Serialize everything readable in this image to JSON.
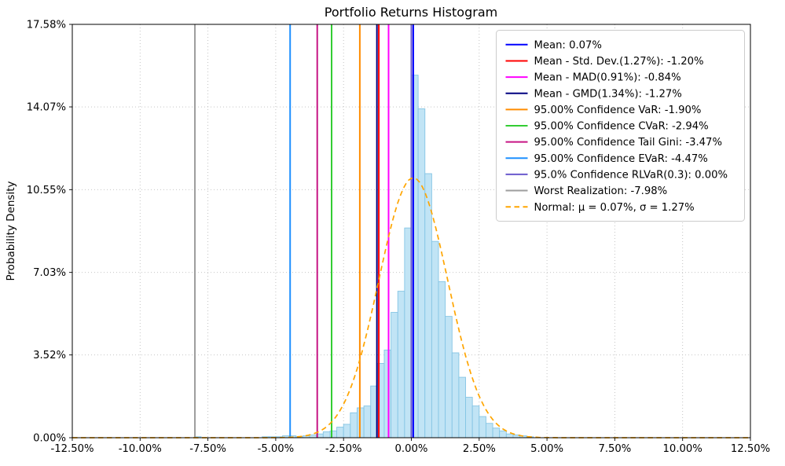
{
  "chart_data": {
    "type": "histogram",
    "title": "Portfolio Returns Histogram",
    "ylabel": "Probability Density",
    "xlabel": "",
    "xlim": [
      -12.5,
      12.5
    ],
    "ylim": [
      0,
      17.58
    ],
    "grid": true,
    "legend_position": "upper right",
    "x_ticks": [
      -12.5,
      -10,
      -7.5,
      -5,
      -2.5,
      0,
      2.5,
      5,
      7.5,
      10,
      12.5
    ],
    "x_tick_labels": [
      "-12.50%",
      "-10.00%",
      "-7.50%",
      "-5.00%",
      "-2.50%",
      "0.00%",
      "2.50%",
      "5.00%",
      "7.50%",
      "10.00%",
      "12.50%"
    ],
    "y_ticks": [
      0,
      3.52,
      7.03,
      10.55,
      14.07,
      17.58
    ],
    "y_tick_labels": [
      "0.00%",
      "3.52%",
      "7.03%",
      "10.55%",
      "14.07%",
      "17.58%"
    ],
    "histogram": {
      "bin_width": 0.25,
      "fill": "#c1e4f5",
      "edge": "#85c5e4",
      "bins": [
        [
          -7.875,
          0.04
        ],
        [
          -5.375,
          0.04
        ],
        [
          -5.125,
          0.04
        ],
        [
          -4.875,
          0.04
        ],
        [
          -4.625,
          0.08
        ],
        [
          -4.375,
          0.08
        ],
        [
          -4.125,
          0.04
        ],
        [
          -3.875,
          0.08
        ],
        [
          -3.625,
          0.12
        ],
        [
          -3.375,
          0.16
        ],
        [
          -3.125,
          0.25
        ],
        [
          -2.875,
          0.29
        ],
        [
          -2.625,
          0.45
        ],
        [
          -2.375,
          0.57
        ],
        [
          -2.125,
          1.06
        ],
        [
          -1.875,
          1.27
        ],
        [
          -1.625,
          1.35
        ],
        [
          -1.375,
          2.2
        ],
        [
          -1.125,
          3.16
        ],
        [
          -0.875,
          3.73
        ],
        [
          -0.625,
          5.33
        ],
        [
          -0.375,
          6.23
        ],
        [
          -0.125,
          8.92
        ],
        [
          0.125,
          15.42
        ],
        [
          0.375,
          13.99
        ],
        [
          0.625,
          11.23
        ],
        [
          0.875,
          8.35
        ],
        [
          1.125,
          6.64
        ],
        [
          1.375,
          5.16
        ],
        [
          1.625,
          3.61
        ],
        [
          1.875,
          2.57
        ],
        [
          2.125,
          1.72
        ],
        [
          2.375,
          1.35
        ],
        [
          2.625,
          0.9
        ],
        [
          2.875,
          0.61
        ],
        [
          3.125,
          0.41
        ],
        [
          3.375,
          0.29
        ],
        [
          3.625,
          0.16
        ],
        [
          3.875,
          0.12
        ],
        [
          4.125,
          0.08
        ],
        [
          4.375,
          0.04
        ]
      ]
    },
    "vlines": [
      {
        "name": "mean",
        "x": 0.07,
        "color": "#0000ff",
        "label": "Mean: 0.07%"
      },
      {
        "name": "mean-minus-std-dev",
        "x": -1.2,
        "color": "#ff0000",
        "label": "Mean - Std. Dev.(1.27%): -1.20%"
      },
      {
        "name": "mean-minus-mad",
        "x": -0.84,
        "color": "#ff00ff",
        "label": "Mean - MAD(0.91%): -0.84%"
      },
      {
        "name": "mean-minus-gmd",
        "x": -1.27,
        "color": "#000080",
        "label": "Mean - GMD(1.34%): -1.27%"
      },
      {
        "name": "confidence-var",
        "x": -1.9,
        "color": "#ff8c00",
        "label": "95.00% Confidence VaR: -1.90%"
      },
      {
        "name": "confidence-cvar",
        "x": -2.94,
        "color": "#32cd32",
        "label": "95.00% Confidence CVaR: -2.94%"
      },
      {
        "name": "confidence-tail-gini",
        "x": -3.47,
        "color": "#c71585",
        "label": "95.00% Confidence Tail Gini: -3.47%"
      },
      {
        "name": "confidence-evar",
        "x": -4.47,
        "color": "#1e90ff",
        "label": "95.00% Confidence EVaR: -4.47%"
      },
      {
        "name": "confidence-rlvar",
        "x": 0.0,
        "color": "#6a5acd",
        "label": "95.0% Confidence RLVaR(0.3): 0.00%"
      },
      {
        "name": "worst-realization",
        "x": -7.98,
        "color": "#9e9e9e",
        "label": "Worst Realization: -7.98%"
      }
    ],
    "normal_curve": {
      "mu": 0.07,
      "sigma": 1.27,
      "peak": 11.05,
      "color": "#ffa500",
      "dash": "6.5 4.5",
      "label": "Normal: μ = 0.07%, σ = 1.27%"
    }
  }
}
